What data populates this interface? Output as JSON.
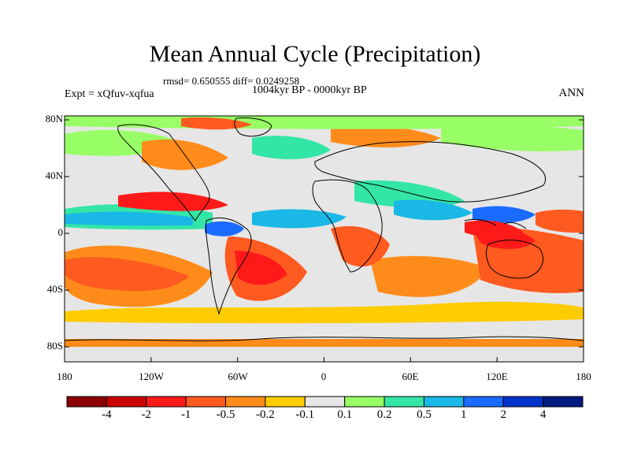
{
  "title": "Mean Annual Cycle (Precipitation)",
  "stats_text": "rmsd= 0.650555 diff= 0.0249258",
  "period": "1004kyr BP - 0000kyr BP",
  "experiment": "Expt = xQfuv-xqfua",
  "season": "ANN",
  "axes": {
    "x_ticks": [
      "180",
      "120W",
      "60W",
      "0",
      "60E",
      "120E",
      "180"
    ],
    "y_ticks": [
      "80N",
      "40N",
      "0",
      "40S",
      "80S"
    ]
  },
  "colorbar": {
    "labels": [
      "-4",
      "-2",
      "-1",
      "-0.5",
      "-0.2",
      "-0.1",
      "0.1",
      "0.2",
      "0.5",
      "1",
      "2",
      "4"
    ],
    "colors": [
      "#8b0000",
      "#cc0000",
      "#ff1a1a",
      "#ff5a1f",
      "#ff8c1a",
      "#ffcc00",
      "#e6e6e6",
      "#99ff66",
      "#33e6a6",
      "#1ab8e6",
      "#1a6bff",
      "#0033cc",
      "#001a80"
    ]
  },
  "colors": {
    "neutral": "#e6e6e6",
    "coast": "#000000"
  }
}
